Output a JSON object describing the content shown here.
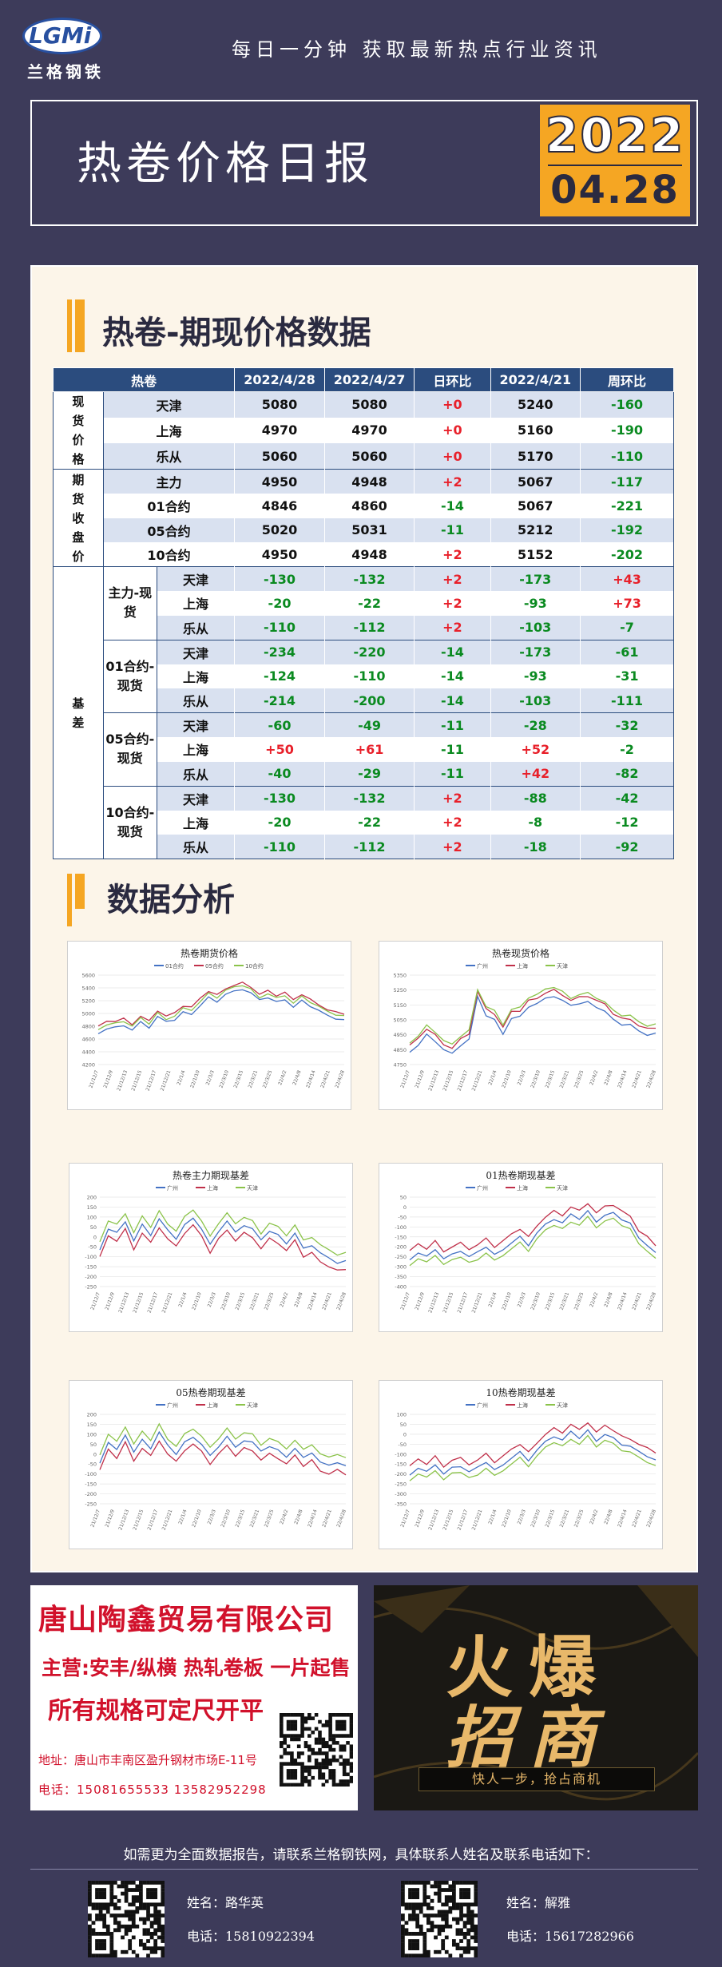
{
  "header": {
    "logo_letters": "LGMi",
    "logo_name": "兰格钢铁",
    "slogan": "每日一分钟  获取最新热点行业资讯"
  },
  "report": {
    "title": "热卷价格日报",
    "year": "2022",
    "date": "04.28"
  },
  "section1": {
    "title": "热卷-期现价格数据"
  },
  "section2": {
    "title": "数据分析"
  },
  "table": {
    "headers": [
      "热卷",
      "2022/4/28",
      "2022/4/27",
      "日环比",
      "2022/4/21",
      "周环比"
    ],
    "groups": {
      "spot": "现\n货\n价\n格",
      "futures": "期\n货\n收\n盘\n价",
      "basis": "基\n差"
    },
    "spot": [
      {
        "name": "天津",
        "d1": "5080",
        "d2": "5080",
        "dd": "+0",
        "w": "5240",
        "wd": "-160"
      },
      {
        "name": "上海",
        "d1": "4970",
        "d2": "4970",
        "dd": "+0",
        "w": "5160",
        "wd": "-190"
      },
      {
        "name": "乐从",
        "d1": "5060",
        "d2": "5060",
        "dd": "+0",
        "w": "5170",
        "wd": "-110"
      }
    ],
    "futures": [
      {
        "name": "主力",
        "d1": "4950",
        "d2": "4948",
        "dd": "+2",
        "w": "5067",
        "wd": "-117"
      },
      {
        "name": "01合约",
        "d1": "4846",
        "d2": "4860",
        "dd": "-14",
        "w": "5067",
        "wd": "-221"
      },
      {
        "name": "05合约",
        "d1": "5020",
        "d2": "5031",
        "dd": "-11",
        "w": "5212",
        "wd": "-192"
      },
      {
        "name": "10合约",
        "d1": "4950",
        "d2": "4948",
        "dd": "+2",
        "w": "5152",
        "wd": "-202"
      }
    ],
    "basis": [
      {
        "group": "主力-现货",
        "rows": [
          {
            "loc": "天津",
            "d1": "-130",
            "d2": "-132",
            "dd": "+2",
            "w": "-173",
            "wd": "+43"
          },
          {
            "loc": "上海",
            "d1": "-20",
            "d2": "-22",
            "dd": "+2",
            "w": "-93",
            "wd": "+73"
          },
          {
            "loc": "乐从",
            "d1": "-110",
            "d2": "-112",
            "dd": "+2",
            "w": "-103",
            "wd": "-7"
          }
        ]
      },
      {
        "group": "01合约-现货",
        "rows": [
          {
            "loc": "天津",
            "d1": "-234",
            "d2": "-220",
            "dd": "-14",
            "w": "-173",
            "wd": "-61"
          },
          {
            "loc": "上海",
            "d1": "-124",
            "d2": "-110",
            "dd": "-14",
            "w": "-93",
            "wd": "-31"
          },
          {
            "loc": "乐从",
            "d1": "-214",
            "d2": "-200",
            "dd": "-14",
            "w": "-103",
            "wd": "-111"
          }
        ]
      },
      {
        "group": "05合约-现货",
        "rows": [
          {
            "loc": "天津",
            "d1": "-60",
            "d2": "-49",
            "dd": "-11",
            "w": "-28",
            "wd": "-32"
          },
          {
            "loc": "上海",
            "d1": "+50",
            "d2": "+61",
            "dd": "-11",
            "w": "+52",
            "wd": "-2"
          },
          {
            "loc": "乐从",
            "d1": "-40",
            "d2": "-29",
            "dd": "-11",
            "w": "+42",
            "wd": "-82"
          }
        ]
      },
      {
        "group": "10合约-现货",
        "rows": [
          {
            "loc": "天津",
            "d1": "-130",
            "d2": "-132",
            "dd": "+2",
            "w": "-88",
            "wd": "-42"
          },
          {
            "loc": "上海",
            "d1": "-20",
            "d2": "-22",
            "dd": "+2",
            "w": "-8",
            "wd": "-12"
          },
          {
            "loc": "乐从",
            "d1": "-110",
            "d2": "-112",
            "dd": "+2",
            "w": "-18",
            "wd": "-92"
          }
        ]
      }
    ]
  },
  "charts": [
    {
      "id": "c1",
      "title": "热卷期货价格",
      "legend": [
        "01合约",
        "05合约",
        "10合约"
      ],
      "colors": [
        "#4472c4",
        "#c0304a",
        "#8bc34a"
      ],
      "yticks": [
        "5600",
        "5400",
        "5200",
        "5000",
        "4800",
        "4600",
        "4400",
        "4200"
      ],
      "ylim": [
        4200,
        5600
      ],
      "base": [
        4700,
        4760,
        4780,
        4820,
        4740,
        4860,
        4780,
        4950,
        4860,
        4900,
        5020,
        5000,
        5120,
        5250,
        5190,
        5300,
        5340,
        5380,
        5320,
        5200,
        5250,
        5180,
        5230,
        5100,
        5200,
        5120,
        5050,
        4960,
        4920,
        4900
      ],
      "offsets": [
        0,
        100,
        60
      ],
      "xticks": [
        "21/12/7",
        "21/12/9",
        "21/12/13",
        "21/12/15",
        "21/12/17",
        "21/12/21",
        "22/1/4",
        "22/1/10",
        "22/3/3",
        "22/3/10",
        "22/3/15",
        "22/3/21",
        "22/3/25",
        "22/4/2",
        "22/4/8",
        "22/4/14",
        "22/4/21",
        "22/4/28"
      ]
    },
    {
      "id": "c2",
      "title": "热卷现货价格",
      "legend": [
        "广州",
        "上海",
        "天津"
      ],
      "colors": [
        "#4472c4",
        "#c0304a",
        "#8bc34a"
      ],
      "yticks": [
        "5350",
        "5250",
        "5150",
        "5050",
        "4950",
        "4850",
        "4750"
      ],
      "ylim": [
        4750,
        5350
      ],
      "base": [
        4880,
        4920,
        4990,
        4950,
        4890,
        4860,
        4920,
        4960,
        5240,
        5120,
        5090,
        5000,
        5100,
        5110,
        5180,
        5200,
        5230,
        5250,
        5220,
        5180,
        5200,
        5210,
        5180,
        5150,
        5090,
        5060,
        5060,
        5010,
        4990,
        5000
      ],
      "offsets": [
        -40,
        0,
        20
      ],
      "xticks": [
        "21/12/7",
        "21/12/9",
        "21/12/13",
        "21/12/15",
        "21/12/17",
        "21/12/21",
        "22/1/4",
        "22/1/10",
        "22/3/3",
        "22/3/10",
        "22/3/15",
        "22/3/21",
        "22/3/25",
        "22/4/2",
        "22/4/8",
        "22/4/14",
        "22/4/21",
        "22/4/28"
      ]
    },
    {
      "id": "c3",
      "title": "热卷主力期现基差",
      "legend": [
        "广州",
        "上海",
        "天津"
      ],
      "colors": [
        "#4472c4",
        "#c0304a",
        "#8bc34a"
      ],
      "yticks": [
        "200",
        "150",
        "100",
        "50",
        "0",
        "-50",
        "-100",
        "-150",
        "-200",
        "-250"
      ],
      "ylim": [
        -250,
        200
      ],
      "base": [
        -60,
        40,
        20,
        80,
        -20,
        60,
        10,
        90,
        30,
        -10,
        60,
        100,
        40,
        -40,
        30,
        80,
        20,
        60,
        40,
        -20,
        30,
        10,
        -30,
        20,
        -60,
        -40,
        -80,
        -110,
        -130,
        -120
      ],
      "offsets": [
        0,
        -40,
        40
      ],
      "xticks": [
        "21/12/7",
        "21/12/9",
        "21/12/13",
        "21/12/15",
        "21/12/17",
        "21/12/21",
        "22/1/4",
        "22/1/10",
        "22/3/3",
        "22/3/10",
        "22/3/15",
        "22/3/21",
        "22/3/25",
        "22/4/2",
        "22/4/8",
        "22/4/14",
        "22/4/21",
        "22/4/28"
      ]
    },
    {
      "id": "c4",
      "title": "01热卷期现基差",
      "legend": [
        "广州",
        "上海",
        "天津"
      ],
      "colors": [
        "#4472c4",
        "#c0304a",
        "#8bc34a"
      ],
      "yticks": [
        "50",
        "0",
        "-50",
        "-100",
        "-150",
        "-200",
        "-250",
        "-300",
        "-350",
        "-400"
      ],
      "ylim": [
        -400,
        50
      ],
      "base": [
        -260,
        -230,
        -250,
        -210,
        -260,
        -240,
        -220,
        -250,
        -230,
        -200,
        -240,
        -210,
        -180,
        -150,
        -190,
        -130,
        -90,
        -60,
        -80,
        -40,
        -60,
        -20,
        -70,
        -40,
        -30,
        -60,
        -80,
        -160,
        -190,
        -230
      ],
      "offsets": [
        0,
        40,
        -30
      ],
      "xticks": [
        "21/12/7",
        "21/12/9",
        "21/12/13",
        "21/12/15",
        "21/12/17",
        "21/12/21",
        "22/1/4",
        "22/1/10",
        "22/3/3",
        "22/3/10",
        "22/3/15",
        "22/3/21",
        "22/3/25",
        "22/4/2",
        "22/4/8",
        "22/4/14",
        "22/4/21",
        "22/4/28"
      ]
    },
    {
      "id": "c5",
      "title": "05热卷期现基差",
      "legend": [
        "广州",
        "上海",
        "天津"
      ],
      "colors": [
        "#4472c4",
        "#c0304a",
        "#8bc34a"
      ],
      "yticks": [
        "200",
        "150",
        "100",
        "50",
        "0",
        "-50",
        "-100",
        "-150",
        "-200",
        "-250"
      ],
      "ylim": [
        -250,
        200
      ],
      "base": [
        -40,
        60,
        20,
        100,
        10,
        70,
        30,
        110,
        40,
        0,
        60,
        90,
        50,
        -10,
        40,
        90,
        30,
        70,
        60,
        10,
        40,
        20,
        -10,
        30,
        -20,
        10,
        -40,
        -60,
        -40,
        -60
      ],
      "offsets": [
        0,
        -40,
        40
      ],
      "xticks": [
        "21/12/7",
        "21/12/9",
        "21/12/13",
        "21/12/15",
        "21/12/17",
        "21/12/21",
        "22/1/4",
        "22/1/10",
        "22/3/3",
        "22/3/10",
        "22/3/15",
        "22/3/21",
        "22/3/25",
        "22/4/2",
        "22/4/8",
        "22/4/14",
        "22/4/21",
        "22/4/28"
      ]
    },
    {
      "id": "c6",
      "title": "10热卷期现基差",
      "legend": [
        "广州",
        "上海",
        "天津"
      ],
      "colors": [
        "#4472c4",
        "#c0304a",
        "#8bc34a"
      ],
      "yticks": [
        "100",
        "50",
        "0",
        "-50",
        "-100",
        "-150",
        "-200",
        "-250",
        "-300",
        "-350"
      ],
      "ylim": [
        -350,
        100
      ],
      "base": [
        -200,
        -170,
        -190,
        -150,
        -200,
        -170,
        -160,
        -190,
        -170,
        -140,
        -180,
        -150,
        -120,
        -90,
        -130,
        -80,
        -40,
        -10,
        -30,
        10,
        -20,
        20,
        -30,
        0,
        -20,
        -50,
        -60,
        -90,
        -110,
        -130
      ],
      "offsets": [
        0,
        40,
        -30
      ],
      "xticks": [
        "21/12/7",
        "21/12/9",
        "21/12/13",
        "21/12/15",
        "21/12/17",
        "21/12/21",
        "22/1/4",
        "22/1/10",
        "22/3/3",
        "22/3/10",
        "22/3/15",
        "22/3/21",
        "22/3/25",
        "22/4/2",
        "22/4/8",
        "22/4/14",
        "22/4/21",
        "22/4/28"
      ]
    }
  ],
  "ad_left": {
    "company": "唐山陶鑫贸易有限公司",
    "main": "主营:安丰/纵横 热轧卷板 一片起售",
    "spec": "所有规格可定尺开平",
    "address": "地址：唐山市丰南区盈升钢材市场E-11号",
    "phone": "电话：15081655533   13582952298"
  },
  "ad_right": {
    "line1": "火爆",
    "line2": "招商",
    "tag": "快人一步，抢占商机"
  },
  "footer": {
    "text": "如需更为全面数据报告，请联系兰格钢铁网，具体联系人姓名及联系电话如下：",
    "contacts": [
      {
        "name": "姓名：路华英",
        "phone": "电话：15810922394"
      },
      {
        "name": "姓名：解雅",
        "phone": "电话：15617282966"
      }
    ]
  }
}
